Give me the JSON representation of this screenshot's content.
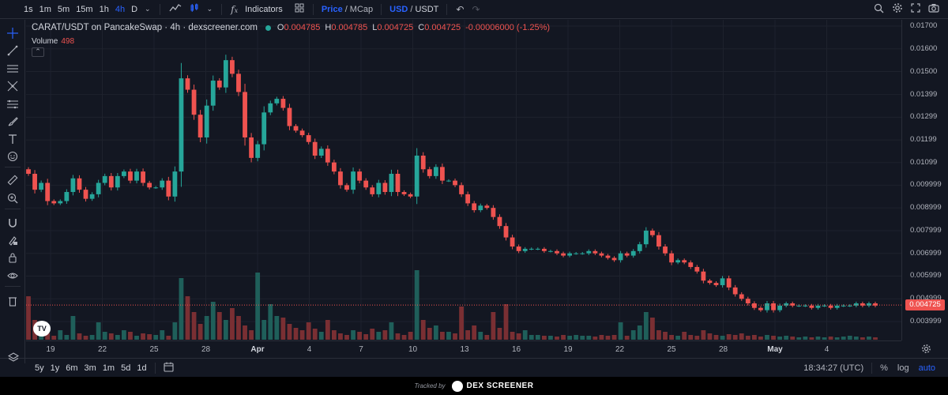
{
  "topbar": {
    "timeframes": [
      "1s",
      "1m",
      "5m",
      "15m",
      "1h",
      "4h",
      "D"
    ],
    "active_timeframe": "4h",
    "indicators_label": "Indicators",
    "price_label": "Price",
    "mcap_label": "MCap",
    "usd_label": "USD",
    "usdt_label": "USDT",
    "slash": "/"
  },
  "legend": {
    "symbol": "CARAT/USDT on PancakeSwap · 4h · dexscreener.com",
    "o_label": "O",
    "o_value": "0.004785",
    "h_label": "H",
    "h_value": "0.004785",
    "l_label": "L",
    "l_value": "0.004725",
    "c_label": "C",
    "c_value": "0.004725",
    "change": "-0.00006000 (-1.25%)",
    "volume_label": "Volume",
    "volume_value": "498"
  },
  "price_axis": {
    "labels": [
      "0.01700",
      "0.01600",
      "0.01500",
      "0.01399",
      "0.01299",
      "0.01199",
      "0.01099",
      "0.009999",
      "0.008999",
      "0.007999",
      "0.006999",
      "0.005999",
      "0.004999",
      "0.003999"
    ],
    "current_price": "0.004725"
  },
  "time_axis": {
    "labels": [
      "19",
      "22",
      "25",
      "28",
      "Apr",
      "4",
      "7",
      "10",
      "13",
      "16",
      "19",
      "22",
      "25",
      "28",
      "May",
      "4"
    ],
    "bold": [
      "Apr",
      "May"
    ]
  },
  "bottombar": {
    "ranges": [
      "5y",
      "1y",
      "6m",
      "3m",
      "1m",
      "5d",
      "1d"
    ],
    "time": "18:34:27 (UTC)",
    "percent": "%",
    "log": "log",
    "auto": "auto"
  },
  "footer": {
    "tracked": "Tracked by",
    "brand": "DEX SCREENER"
  },
  "colors": {
    "up": "#26a69a",
    "down": "#ef5350",
    "background": "#131722",
    "accent": "#2962ff"
  },
  "icons": {
    "left_toolbar": [
      "crosshair-icon",
      "trend-line-icon",
      "horizontal-lines-icon",
      "pitchfork-icon",
      "fib-icon",
      "brush-icon",
      "text-icon",
      "emoji-icon",
      "ruler-icon",
      "zoom-in-icon",
      "magnet-icon",
      "lock-drawing-icon",
      "lock-icon",
      "eye-icon",
      "trash-icon",
      "layers-icon"
    ],
    "top_right": [
      "search-icon",
      "settings-icon",
      "fullscreen-icon",
      "camera-icon"
    ]
  },
  "chart_data": {
    "type": "candlestick",
    "interval": "4h",
    "xlabel": "",
    "ylabel": "",
    "ylim": [
      0.0034,
      0.0172
    ],
    "y_scale": "linear",
    "grid": true,
    "x_ticks": [
      "19",
      "22",
      "25",
      "28",
      "Apr",
      "4",
      "7",
      "10",
      "13",
      "16",
      "19",
      "22",
      "25",
      "28",
      "May",
      "4"
    ],
    "close_path": [
      0.0105,
      0.0098,
      0.0101,
      0.0093,
      0.0092,
      0.0093,
      0.0097,
      0.0103,
      0.0098,
      0.0094,
      0.0096,
      0.0101,
      0.0104,
      0.0099,
      0.0104,
      0.0106,
      0.0102,
      0.0106,
      0.0101,
      0.0099,
      0.0099,
      0.0102,
      0.0095,
      0.0106,
      0.0147,
      0.0142,
      0.0131,
      0.0121,
      0.0135,
      0.0146,
      0.0143,
      0.0155,
      0.0149,
      0.0141,
      0.0121,
      0.0112,
      0.0118,
      0.0132,
      0.0136,
      0.0138,
      0.0134,
      0.0126,
      0.0124,
      0.0122,
      0.0119,
      0.0113,
      0.0116,
      0.011,
      0.0106,
      0.01,
      0.0098,
      0.0106,
      0.0102,
      0.0099,
      0.0096,
      0.0101,
      0.0097,
      0.0105,
      0.0097,
      0.0096,
      0.0095,
      0.0113,
      0.0107,
      0.0104,
      0.0108,
      0.0102,
      0.0102,
      0.01,
      0.0096,
      0.0092,
      0.0089,
      0.0091,
      0.009,
      0.0086,
      0.0082,
      0.0077,
      0.0073,
      0.0071,
      0.0072,
      0.0072,
      0.0072,
      0.0071,
      0.0071,
      0.007,
      0.0069,
      0.007,
      0.007,
      0.007,
      0.0071,
      0.007,
      0.0069,
      0.0068,
      0.0067,
      0.007,
      0.0069,
      0.0071,
      0.0074,
      0.008,
      0.0078,
      0.0073,
      0.007,
      0.0066,
      0.0067,
      0.0066,
      0.0064,
      0.0062,
      0.0058,
      0.0057,
      0.0056,
      0.0059,
      0.0055,
      0.0052,
      0.005,
      0.0048,
      0.0046,
      0.0045,
      0.0048,
      0.0045,
      0.0047,
      0.0048,
      0.0047,
      0.0047,
      0.0047,
      0.0046,
      0.0047,
      0.0047,
      0.0046,
      0.0047,
      0.0047,
      0.0047,
      0.0048,
      0.0047,
      0.0048,
      0.0047
    ],
    "volume_levels": [
      0.55,
      0.25,
      0.1,
      0.08,
      0.05,
      0.12,
      0.06,
      0.3,
      0.08,
      0.05,
      0.06,
      0.22,
      0.1,
      0.08,
      0.06,
      0.12,
      0.1,
      0.05,
      0.08,
      0.07,
      0.06,
      0.12,
      0.05,
      0.22,
      0.78,
      0.55,
      0.35,
      0.2,
      0.3,
      0.48,
      0.35,
      0.25,
      0.4,
      0.3,
      0.18,
      0.12,
      0.85,
      0.25,
      0.45,
      0.3,
      0.28,
      0.2,
      0.15,
      0.12,
      0.22,
      0.14,
      0.1,
      0.25,
      0.12,
      0.08,
      0.06,
      0.12,
      0.1,
      0.07,
      0.14,
      0.1,
      0.12,
      0.22,
      0.08,
      0.06,
      0.1,
      0.88,
      0.25,
      0.15,
      0.18,
      0.1,
      0.1,
      0.08,
      0.42,
      0.12,
      0.18,
      0.1,
      0.06,
      0.35,
      0.15,
      0.45,
      0.1,
      0.08,
      0.12,
      0.06,
      0.06,
      0.05,
      0.05,
      0.04,
      0.06,
      0.05,
      0.06,
      0.05,
      0.05,
      0.04,
      0.06,
      0.05,
      0.06,
      0.22,
      0.05,
      0.12,
      0.18,
      0.35,
      0.28,
      0.12,
      0.1,
      0.06,
      0.05,
      0.1,
      0.06,
      0.05,
      0.12,
      0.08,
      0.06,
      0.05,
      0.07,
      0.06,
      0.08,
      0.05,
      0.06,
      0.04,
      0.06,
      0.05,
      0.04,
      0.05,
      0.04,
      0.03,
      0.04,
      0.03,
      0.04,
      0.03,
      0.04,
      0.03,
      0.04,
      0.05,
      0.04,
      0.03,
      0.04,
      0.03
    ]
  }
}
